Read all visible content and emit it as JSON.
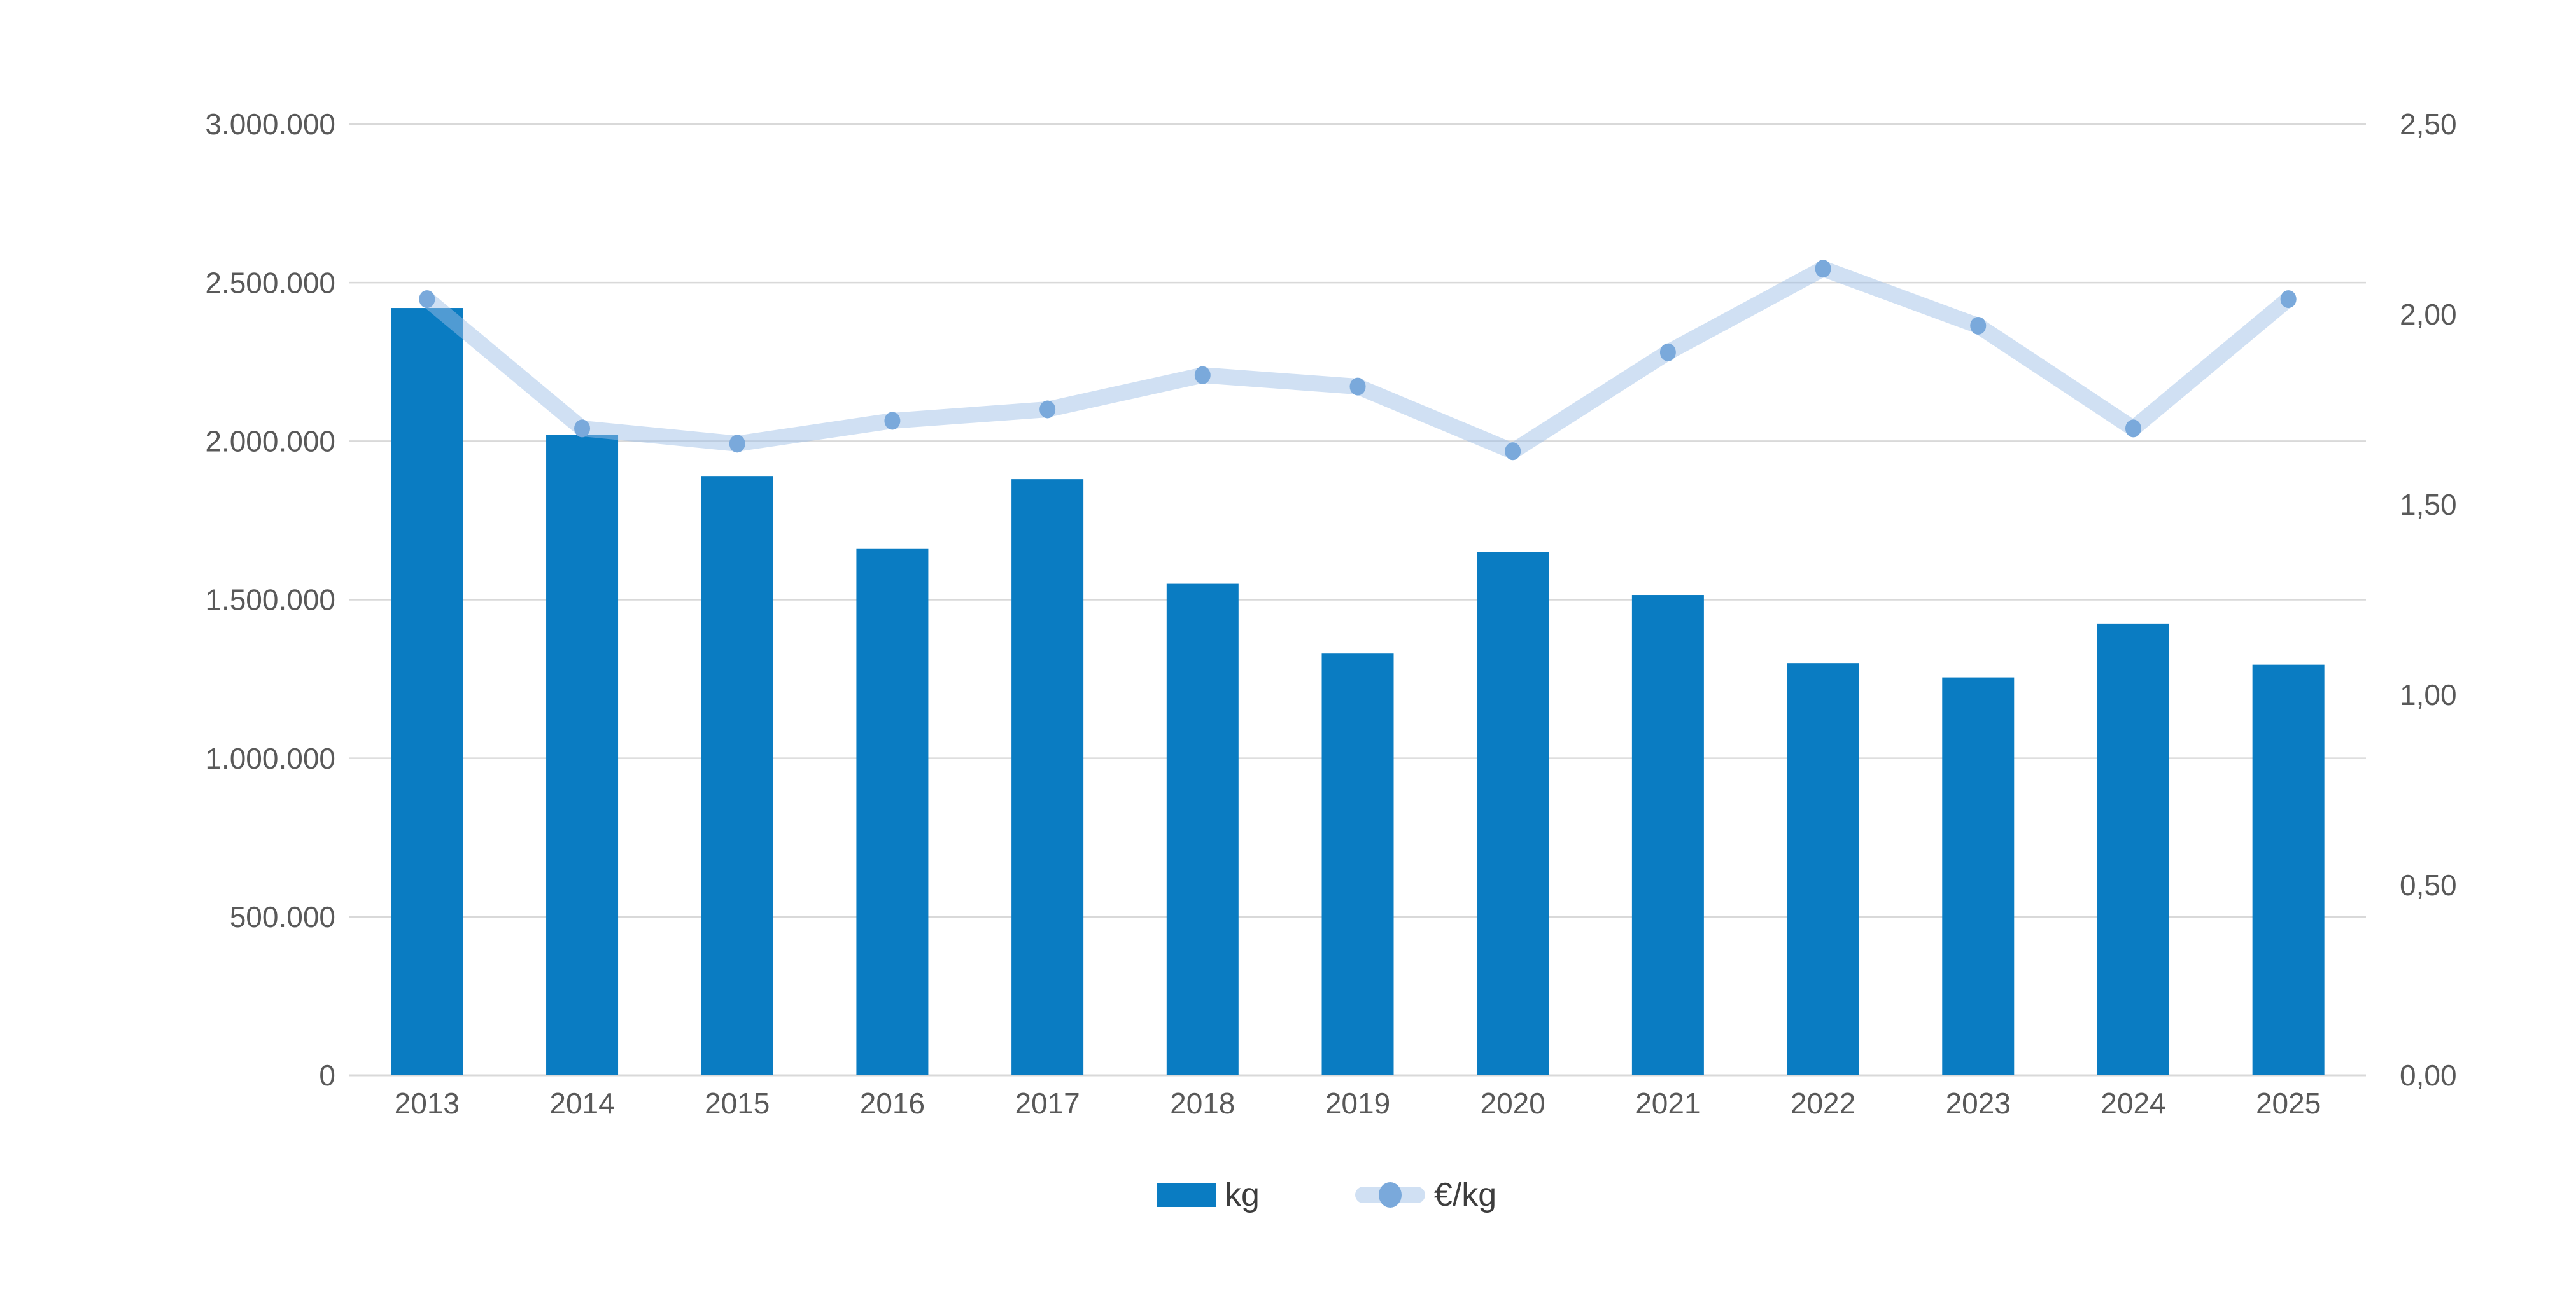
{
  "chart_data": {
    "type": "combo",
    "categories": [
      "2013",
      "2014",
      "2015",
      "2016",
      "2017",
      "2018",
      "2019",
      "2020",
      "2021",
      "2022",
      "2023",
      "2024",
      "2025"
    ],
    "series": [
      {
        "name": "kg",
        "type": "bar",
        "axis": "left",
        "color": "#0a7cc2",
        "values": [
          2420000,
          2020000,
          1890000,
          1660000,
          1880000,
          1550000,
          1330000,
          1650000,
          1515000,
          1300000,
          1255000,
          1425000,
          1295000
        ]
      },
      {
        "name": "€/kg",
        "type": "line",
        "axis": "right",
        "line_color": "rgba(157,191,230,0.48)",
        "marker_color": "#7aa9db",
        "values": [
          2.04,
          1.7,
          1.66,
          1.72,
          1.75,
          1.84,
          1.81,
          1.64,
          1.9,
          2.12,
          1.97,
          1.7,
          2.04
        ]
      }
    ],
    "left_axis": {
      "min": 0,
      "max": 3000000,
      "tick_labels_bottom_to_top": [
        "0",
        "500.000",
        "1.000.000",
        "1.500.000",
        "2.000.000",
        "2.500.000",
        "3.000.000"
      ]
    },
    "right_axis": {
      "min": 0,
      "max": 2.5,
      "tick_labels_bottom_to_top": [
        "0,00",
        "0,50",
        "1,00",
        "1,50",
        "2,00",
        "2,50"
      ]
    },
    "grid": true,
    "legend_position": "bottom",
    "legend": [
      "kg",
      "€/kg"
    ]
  },
  "colors": {
    "background": "#ffffff",
    "gridline": "#d9d9d9",
    "axis_text": "#595959",
    "legend_text": "#3d3d3d"
  }
}
